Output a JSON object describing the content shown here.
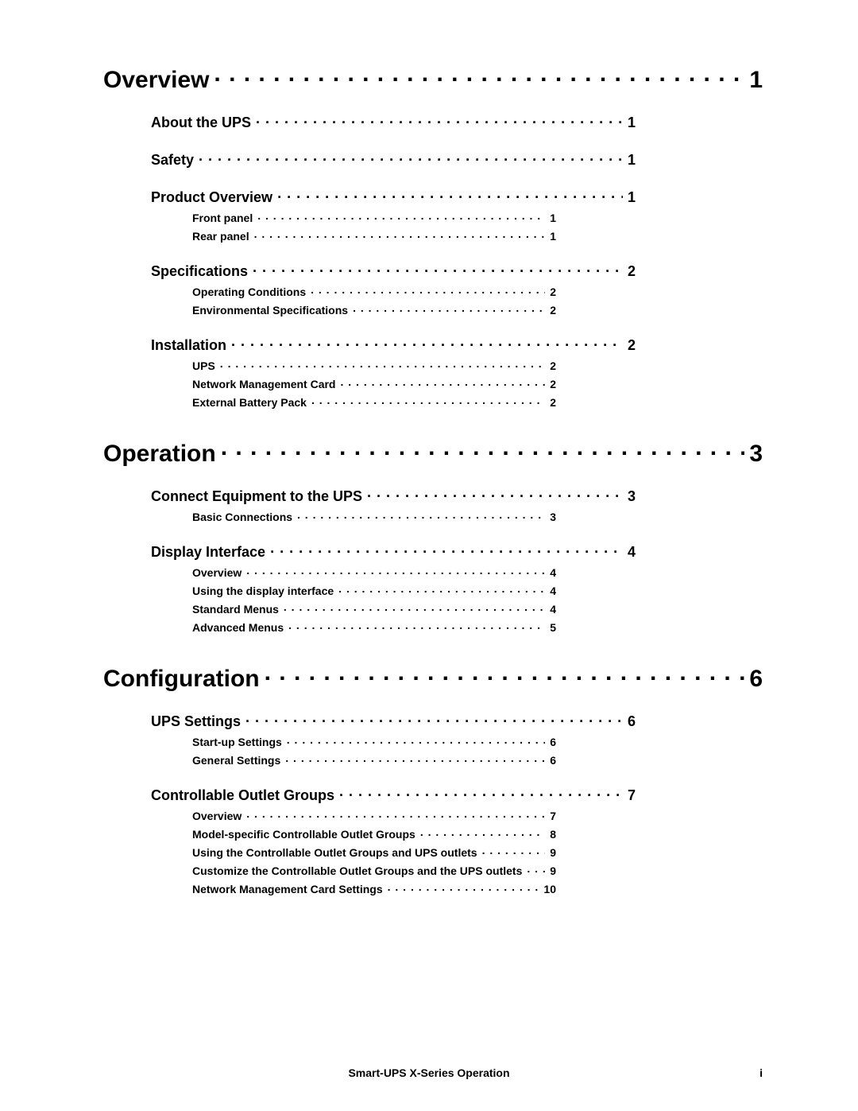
{
  "footer": {
    "title": "Smart-UPS X-Series Operation",
    "page": "i"
  },
  "toc": [
    {
      "level": 1,
      "title": "Overview",
      "page": "1"
    },
    {
      "level": 2,
      "title": "About the UPS",
      "page": "1"
    },
    {
      "level": 2,
      "title": "Safety",
      "page": "1"
    },
    {
      "level": 2,
      "title": "Product Overview",
      "page": "1"
    },
    {
      "level": 3,
      "title": "Front panel",
      "page": "1"
    },
    {
      "level": 3,
      "title": "Rear panel",
      "page": "1"
    },
    {
      "level": 2,
      "title": "Specifications",
      "page": "2"
    },
    {
      "level": 3,
      "title": "Operating Conditions",
      "page": "2"
    },
    {
      "level": 3,
      "title": "Environmental Specifications",
      "page": "2"
    },
    {
      "level": 2,
      "title": "Installation",
      "page": "2"
    },
    {
      "level": 3,
      "title": "UPS",
      "page": "2"
    },
    {
      "level": 3,
      "title": "Network Management Card",
      "page": "2"
    },
    {
      "level": 3,
      "title": "External Battery Pack",
      "page": "2"
    },
    {
      "level": 1,
      "title": "Operation",
      "page": "3"
    },
    {
      "level": 2,
      "title": "Connect Equipment to the UPS",
      "page": "3"
    },
    {
      "level": 3,
      "title": "Basic Connections",
      "page": "3"
    },
    {
      "level": 2,
      "title": "Display Interface",
      "page": "4"
    },
    {
      "level": 3,
      "title": "Overview",
      "page": "4"
    },
    {
      "level": 3,
      "title": "Using the display interface",
      "page": "4"
    },
    {
      "level": 3,
      "title": "Standard Menus",
      "page": "4"
    },
    {
      "level": 3,
      "title": "Advanced Menus",
      "page": "5"
    },
    {
      "level": 1,
      "title": "Configuration",
      "page": "6"
    },
    {
      "level": 2,
      "title": "UPS Settings",
      "page": "6"
    },
    {
      "level": 3,
      "title": "Start-up Settings",
      "page": "6"
    },
    {
      "level": 3,
      "title": "General Settings",
      "page": "6"
    },
    {
      "level": 2,
      "title": "Controllable Outlet Groups",
      "page": "7"
    },
    {
      "level": 3,
      "title": "Overview",
      "page": "7"
    },
    {
      "level": 3,
      "title": "Model-specific Controllable Outlet Groups",
      "page": "8"
    },
    {
      "level": 3,
      "title": "Using the Controllable Outlet Groups and UPS outlets",
      "page": "9"
    },
    {
      "level": 3,
      "title": "Customize the Controllable Outlet Groups and the UPS outlets",
      "page": "9"
    },
    {
      "level": 3,
      "title": "Network Management Card Settings",
      "page": "10"
    }
  ]
}
